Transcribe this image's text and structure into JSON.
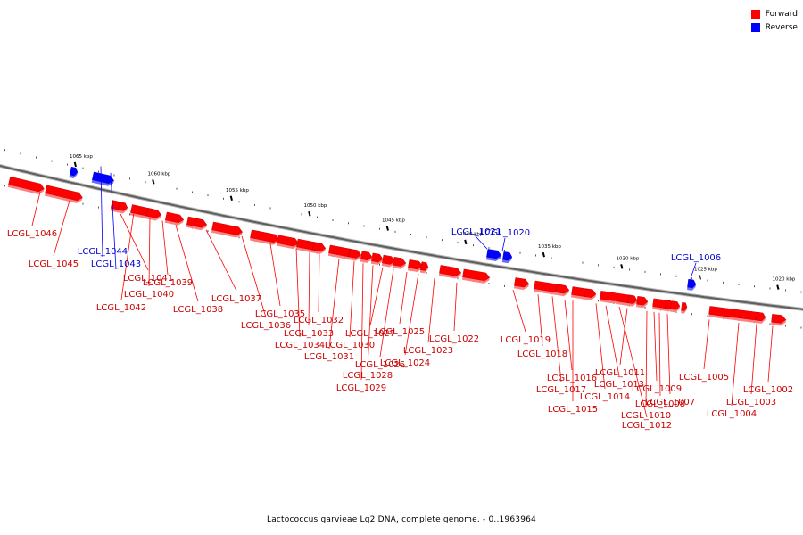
{
  "legend": {
    "forward_label": "Forward",
    "reverse_label": "Reverse",
    "forward_color": "#ff0000",
    "reverse_color": "#0000ff"
  },
  "caption": "Lactococcus garvieae Lg2 DNA, complete genome. - 0..1963964",
  "ticks": [
    {
      "label": "1065 kbp",
      "kbp": 1065
    },
    {
      "label": "1060 kbp",
      "kbp": 1060
    },
    {
      "label": "1055 kbp",
      "kbp": 1055
    },
    {
      "label": "1050 kbp",
      "kbp": 1050
    },
    {
      "label": "1045 kbp",
      "kbp": 1045
    },
    {
      "label": "1040 kbp",
      "kbp": 1040
    },
    {
      "label": "1035 kbp",
      "kbp": 1035
    },
    {
      "label": "1030 kbp",
      "kbp": 1030
    },
    {
      "label": "1025 kbp",
      "kbp": 1025
    },
    {
      "label": "1020 kbp",
      "kbp": 1020
    }
  ],
  "genes": [
    {
      "label": "LCGL_1046",
      "strand": "forward"
    },
    {
      "label": "LCGL_1045",
      "strand": "forward"
    },
    {
      "label": "LCGL_1044",
      "strand": "reverse"
    },
    {
      "label": "LCGL_1043",
      "strand": "reverse"
    },
    {
      "label": "LCGL_1042",
      "strand": "forward"
    },
    {
      "label": "LCGL_1041",
      "strand": "forward"
    },
    {
      "label": "LCGL_1040",
      "strand": "forward"
    },
    {
      "label": "LCGL_1039",
      "strand": "forward"
    },
    {
      "label": "LCGL_1038",
      "strand": "forward"
    },
    {
      "label": "LCGL_1037",
      "strand": "forward"
    },
    {
      "label": "LCGL_1036",
      "strand": "forward"
    },
    {
      "label": "LCGL_1035",
      "strand": "forward"
    },
    {
      "label": "LCGL_1034",
      "strand": "forward"
    },
    {
      "label": "LCGL_1033",
      "strand": "forward"
    },
    {
      "label": "LCGL_1032",
      "strand": "forward"
    },
    {
      "label": "LCGL_1031",
      "strand": "forward"
    },
    {
      "label": "LCGL_1030",
      "strand": "forward"
    },
    {
      "label": "LCGL_1029",
      "strand": "forward"
    },
    {
      "label": "LCGL_1028",
      "strand": "forward"
    },
    {
      "label": "LCGL_1027",
      "strand": "forward"
    },
    {
      "label": "LCGL_1026",
      "strand": "forward"
    },
    {
      "label": "LCGL_1025",
      "strand": "forward"
    },
    {
      "label": "LCGL_1024",
      "strand": "forward"
    },
    {
      "label": "LCGL_1023",
      "strand": "forward"
    },
    {
      "label": "LCGL_1022",
      "strand": "forward"
    },
    {
      "label": "LCGL_1021",
      "strand": "reverse"
    },
    {
      "label": "LCGL_1020",
      "strand": "reverse"
    },
    {
      "label": "LCGL_1019",
      "strand": "forward"
    },
    {
      "label": "LCGL_1018",
      "strand": "forward"
    },
    {
      "label": "LCGL_1017",
      "strand": "forward"
    },
    {
      "label": "LCGL_1016",
      "strand": "forward"
    },
    {
      "label": "LCGL_1015",
      "strand": "forward"
    },
    {
      "label": "LCGL_1014",
      "strand": "forward"
    },
    {
      "label": "LCGL_1013",
      "strand": "forward"
    },
    {
      "label": "LCGL_1012",
      "strand": "forward"
    },
    {
      "label": "LCGL_1011",
      "strand": "forward"
    },
    {
      "label": "LCGL_1010",
      "strand": "forward"
    },
    {
      "label": "LCGL_1009",
      "strand": "forward"
    },
    {
      "label": "LCGL_1008",
      "strand": "forward"
    },
    {
      "label": "LCGL_1007",
      "strand": "forward"
    },
    {
      "label": "LCGL_1006",
      "strand": "reverse"
    },
    {
      "label": "LCGL_1005",
      "strand": "forward"
    },
    {
      "label": "LCGL_1004",
      "strand": "forward"
    },
    {
      "label": "LCGL_1003",
      "strand": "forward"
    },
    {
      "label": "LCGL_1002",
      "strand": "forward"
    }
  ]
}
